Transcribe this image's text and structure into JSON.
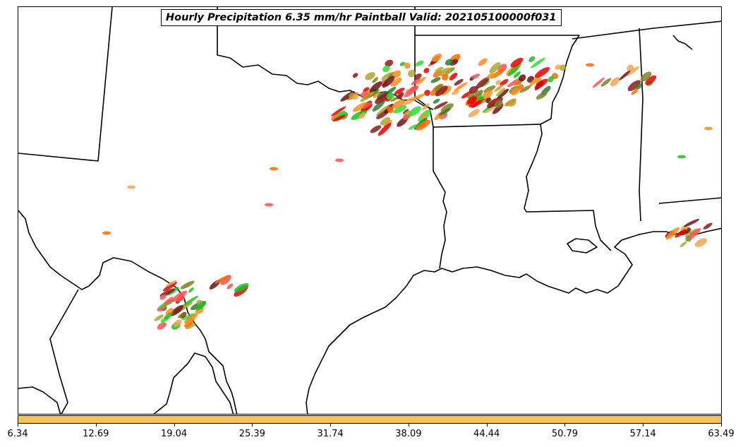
{
  "title": "Hourly Precipitation 6.35 mm/hr Paintball Valid: 202105100000f031",
  "colorbar": {
    "color": "#ffc060",
    "ticks": [
      "6.34",
      "12.69",
      "19.04",
      "25.39",
      "31.74",
      "38.09",
      "44.44",
      "50.79",
      "57.14",
      "63.49"
    ]
  },
  "colors": {
    "boundaries": "#000000",
    "paintball_members": [
      "#8b1a1a",
      "#ff8c1a",
      "#aaa830",
      "#1fbf1f",
      "#ff5050",
      "#2e7d32",
      "#e60000",
      "#f2a64d",
      "#6b1414",
      "#ff6a00",
      "#34d934",
      "#808020"
    ]
  }
}
